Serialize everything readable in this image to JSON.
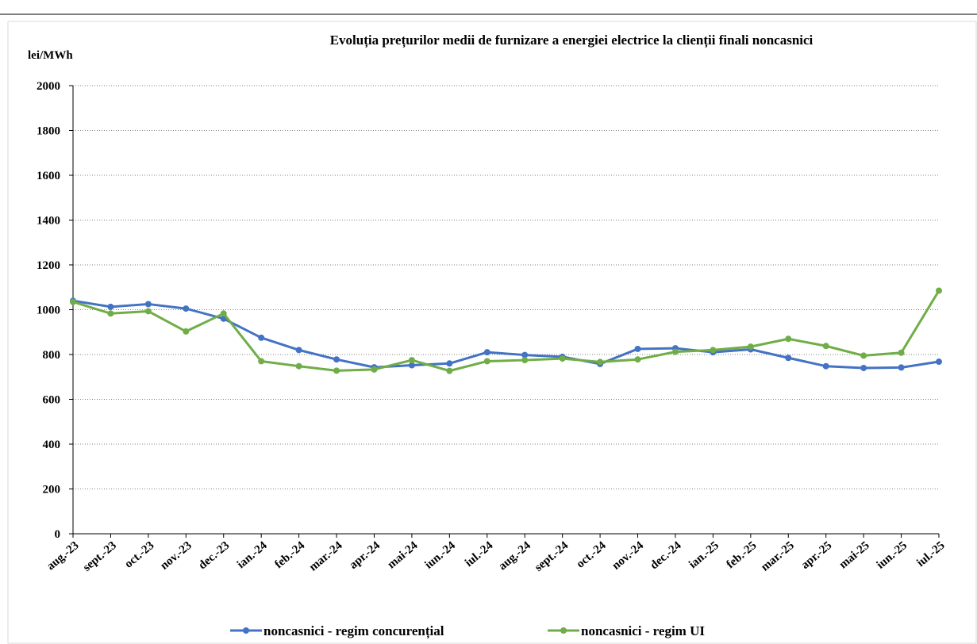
{
  "chart_data": {
    "type": "line",
    "title": "Evoluția prețurilor medii de furnizare a energiei electrice la clienții finali noncasnici",
    "y_label": "lei/MWh",
    "categories": [
      "aug.-23",
      "sept.-23",
      "oct.-23",
      "nov.-23",
      "dec.-23",
      "ian.-24",
      "feb.-24",
      "mar.-24",
      "apr.-24",
      "mai-24",
      "iun.-24",
      "iul.-24",
      "aug.-24",
      "sept.-24",
      "oct.-24",
      "nov.-24",
      "dec.-24",
      "ian.-25",
      "feb.-25",
      "mar.-25",
      "apr.-25",
      "mai-25",
      "iun.-25",
      "iul.-25"
    ],
    "series": [
      {
        "name": "noncasnici - regim concurențial",
        "color": "#4472c4",
        "values": [
          1040,
          1013,
          1025,
          1005,
          960,
          875,
          820,
          778,
          743,
          752,
          760,
          810,
          798,
          790,
          758,
          825,
          828,
          810,
          823,
          785,
          748,
          740,
          742,
          768
        ]
      },
      {
        "name": "noncasnici - regim UI",
        "color": "#70ad47",
        "values": [
          1035,
          983,
          993,
          903,
          983,
          770,
          748,
          728,
          733,
          775,
          727,
          770,
          775,
          782,
          767,
          778,
          812,
          820,
          835,
          870,
          838,
          795,
          808,
          1085
        ]
      }
    ],
    "ylim": [
      0,
      2000
    ],
    "yticks": [
      0,
      200,
      400,
      600,
      800,
      1000,
      1200,
      1400,
      1600,
      1800,
      2000
    ],
    "grid": true,
    "legend": "bottom"
  }
}
